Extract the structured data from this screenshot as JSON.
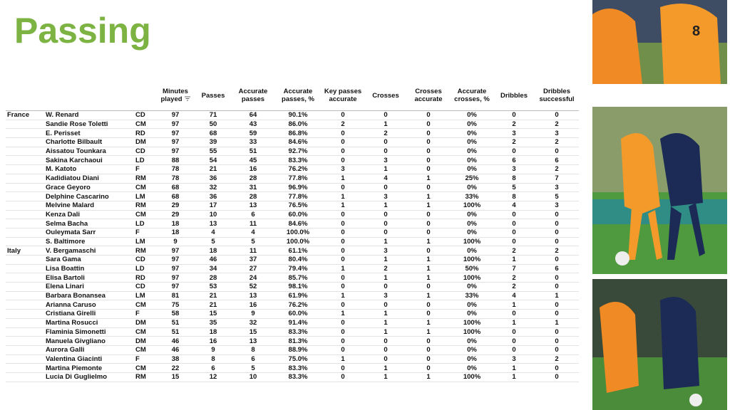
{
  "title": "Passing",
  "table": {
    "headers": [
      "Minutes played",
      "Passes",
      "Accurate passes",
      "Accurate passes, %",
      "Key passes accurate",
      "Crosses",
      "Crosses accurate",
      "Accurate crosses, %",
      "Dribbles",
      "Dribbles successful"
    ],
    "groups": [
      {
        "team": "France",
        "rows": [
          [
            "W. Renard",
            "CD",
            "97",
            "71",
            "64",
            "90.1%",
            "0",
            "0",
            "0",
            "0%",
            "0",
            "0"
          ],
          [
            "Sandie Rose Toletti",
            "CM",
            "97",
            "50",
            "43",
            "86.0%",
            "2",
            "1",
            "0",
            "0%",
            "2",
            "2"
          ],
          [
            "E. Perisset",
            "RD",
            "97",
            "68",
            "59",
            "86.8%",
            "0",
            "2",
            "0",
            "0%",
            "3",
            "3"
          ],
          [
            "Charlotte Bilbault",
            "DM",
            "97",
            "39",
            "33",
            "84.6%",
            "0",
            "0",
            "0",
            "0%",
            "2",
            "2"
          ],
          [
            "Aissatou Tounkara",
            "CD",
            "97",
            "55",
            "51",
            "92.7%",
            "0",
            "0",
            "0",
            "0%",
            "0",
            "0"
          ],
          [
            "Sakina Karchaoui",
            "LD",
            "88",
            "54",
            "45",
            "83.3%",
            "0",
            "3",
            "0",
            "0%",
            "6",
            "6"
          ],
          [
            "M. Katoto",
            "F",
            "78",
            "21",
            "16",
            "76.2%",
            "3",
            "1",
            "0",
            "0%",
            "3",
            "2"
          ],
          [
            "Kadidiatou Diani",
            "RM",
            "78",
            "36",
            "28",
            "77.8%",
            "1",
            "4",
            "1",
            "25%",
            "8",
            "7"
          ],
          [
            "Grace Geyoro",
            "CM",
            "68",
            "32",
            "31",
            "96.9%",
            "0",
            "0",
            "0",
            "0%",
            "5",
            "3"
          ],
          [
            "Delphine Cascarino",
            "LM",
            "68",
            "36",
            "28",
            "77.8%",
            "1",
            "3",
            "1",
            "33%",
            "8",
            "5"
          ],
          [
            "Melvine Malard",
            "RM",
            "29",
            "17",
            "13",
            "76.5%",
            "1",
            "1",
            "1",
            "100%",
            "4",
            "3"
          ],
          [
            "Kenza Dali",
            "CM",
            "29",
            "10",
            "6",
            "60.0%",
            "0",
            "0",
            "0",
            "0%",
            "0",
            "0"
          ],
          [
            "Selma Bacha",
            "LD",
            "18",
            "13",
            "11",
            "84.6%",
            "0",
            "0",
            "0",
            "0%",
            "0",
            "0"
          ],
          [
            "Ouleymata Sarr",
            "F",
            "18",
            "4",
            "4",
            "100.0%",
            "0",
            "0",
            "0",
            "0%",
            "0",
            "0"
          ],
          [
            "S. Baltimore",
            "LM",
            "9",
            "5",
            "5",
            "100.0%",
            "0",
            "1",
            "1",
            "100%",
            "0",
            "0"
          ]
        ]
      },
      {
        "team": "Italy",
        "rows": [
          [
            "V. Bergamaschi",
            "RM",
            "97",
            "18",
            "11",
            "61.1%",
            "0",
            "3",
            "0",
            "0%",
            "2",
            "2"
          ],
          [
            "Sara Gama",
            "CD",
            "97",
            "46",
            "37",
            "80.4%",
            "0",
            "1",
            "1",
            "100%",
            "1",
            "0"
          ],
          [
            "Lisa Boattin",
            "LD",
            "97",
            "34",
            "27",
            "79.4%",
            "1",
            "2",
            "1",
            "50%",
            "7",
            "6"
          ],
          [
            "Elisa Bartoli",
            "RD",
            "97",
            "28",
            "24",
            "85.7%",
            "0",
            "1",
            "1",
            "100%",
            "2",
            "0"
          ],
          [
            "Elena Linari",
            "CD",
            "97",
            "53",
            "52",
            "98.1%",
            "0",
            "0",
            "0",
            "0%",
            "2",
            "0"
          ],
          [
            "Barbara Bonansea",
            "LM",
            "81",
            "21",
            "13",
            "61.9%",
            "1",
            "3",
            "1",
            "33%",
            "4",
            "1"
          ],
          [
            "Arianna Caruso",
            "CM",
            "75",
            "21",
            "16",
            "76.2%",
            "0",
            "0",
            "0",
            "0%",
            "1",
            "0"
          ],
          [
            "Cristiana Girelli",
            "F",
            "58",
            "15",
            "9",
            "60.0%",
            "1",
            "1",
            "0",
            "0%",
            "0",
            "0"
          ],
          [
            "Martina Rosucci",
            "DM",
            "51",
            "35",
            "32",
            "91.4%",
            "0",
            "1",
            "1",
            "100%",
            "1",
            "1"
          ],
          [
            "Flaminia Simonetti",
            "CM",
            "51",
            "18",
            "15",
            "83.3%",
            "0",
            "1",
            "1",
            "100%",
            "0",
            "0"
          ],
          [
            "Manuela Givgliano",
            "DM",
            "46",
            "16",
            "13",
            "81.3%",
            "0",
            "0",
            "0",
            "0%",
            "0",
            "0"
          ],
          [
            "Aurora Galli",
            "CM",
            "46",
            "9",
            "8",
            "88.9%",
            "0",
            "0",
            "0",
            "0%",
            "0",
            "0"
          ],
          [
            "Valentina Giacinti",
            "F",
            "38",
            "8",
            "6",
            "75.0%",
            "1",
            "0",
            "0",
            "0%",
            "3",
            "2"
          ],
          [
            "Martina Piemonte",
            "CM",
            "22",
            "6",
            "5",
            "83.3%",
            "0",
            "1",
            "0",
            "0%",
            "1",
            "0"
          ],
          [
            "Lucia Di Guglielmo",
            "RM",
            "15",
            "12",
            "10",
            "83.3%",
            "0",
            "1",
            "1",
            "100%",
            "1",
            "0"
          ]
        ]
      }
    ]
  }
}
